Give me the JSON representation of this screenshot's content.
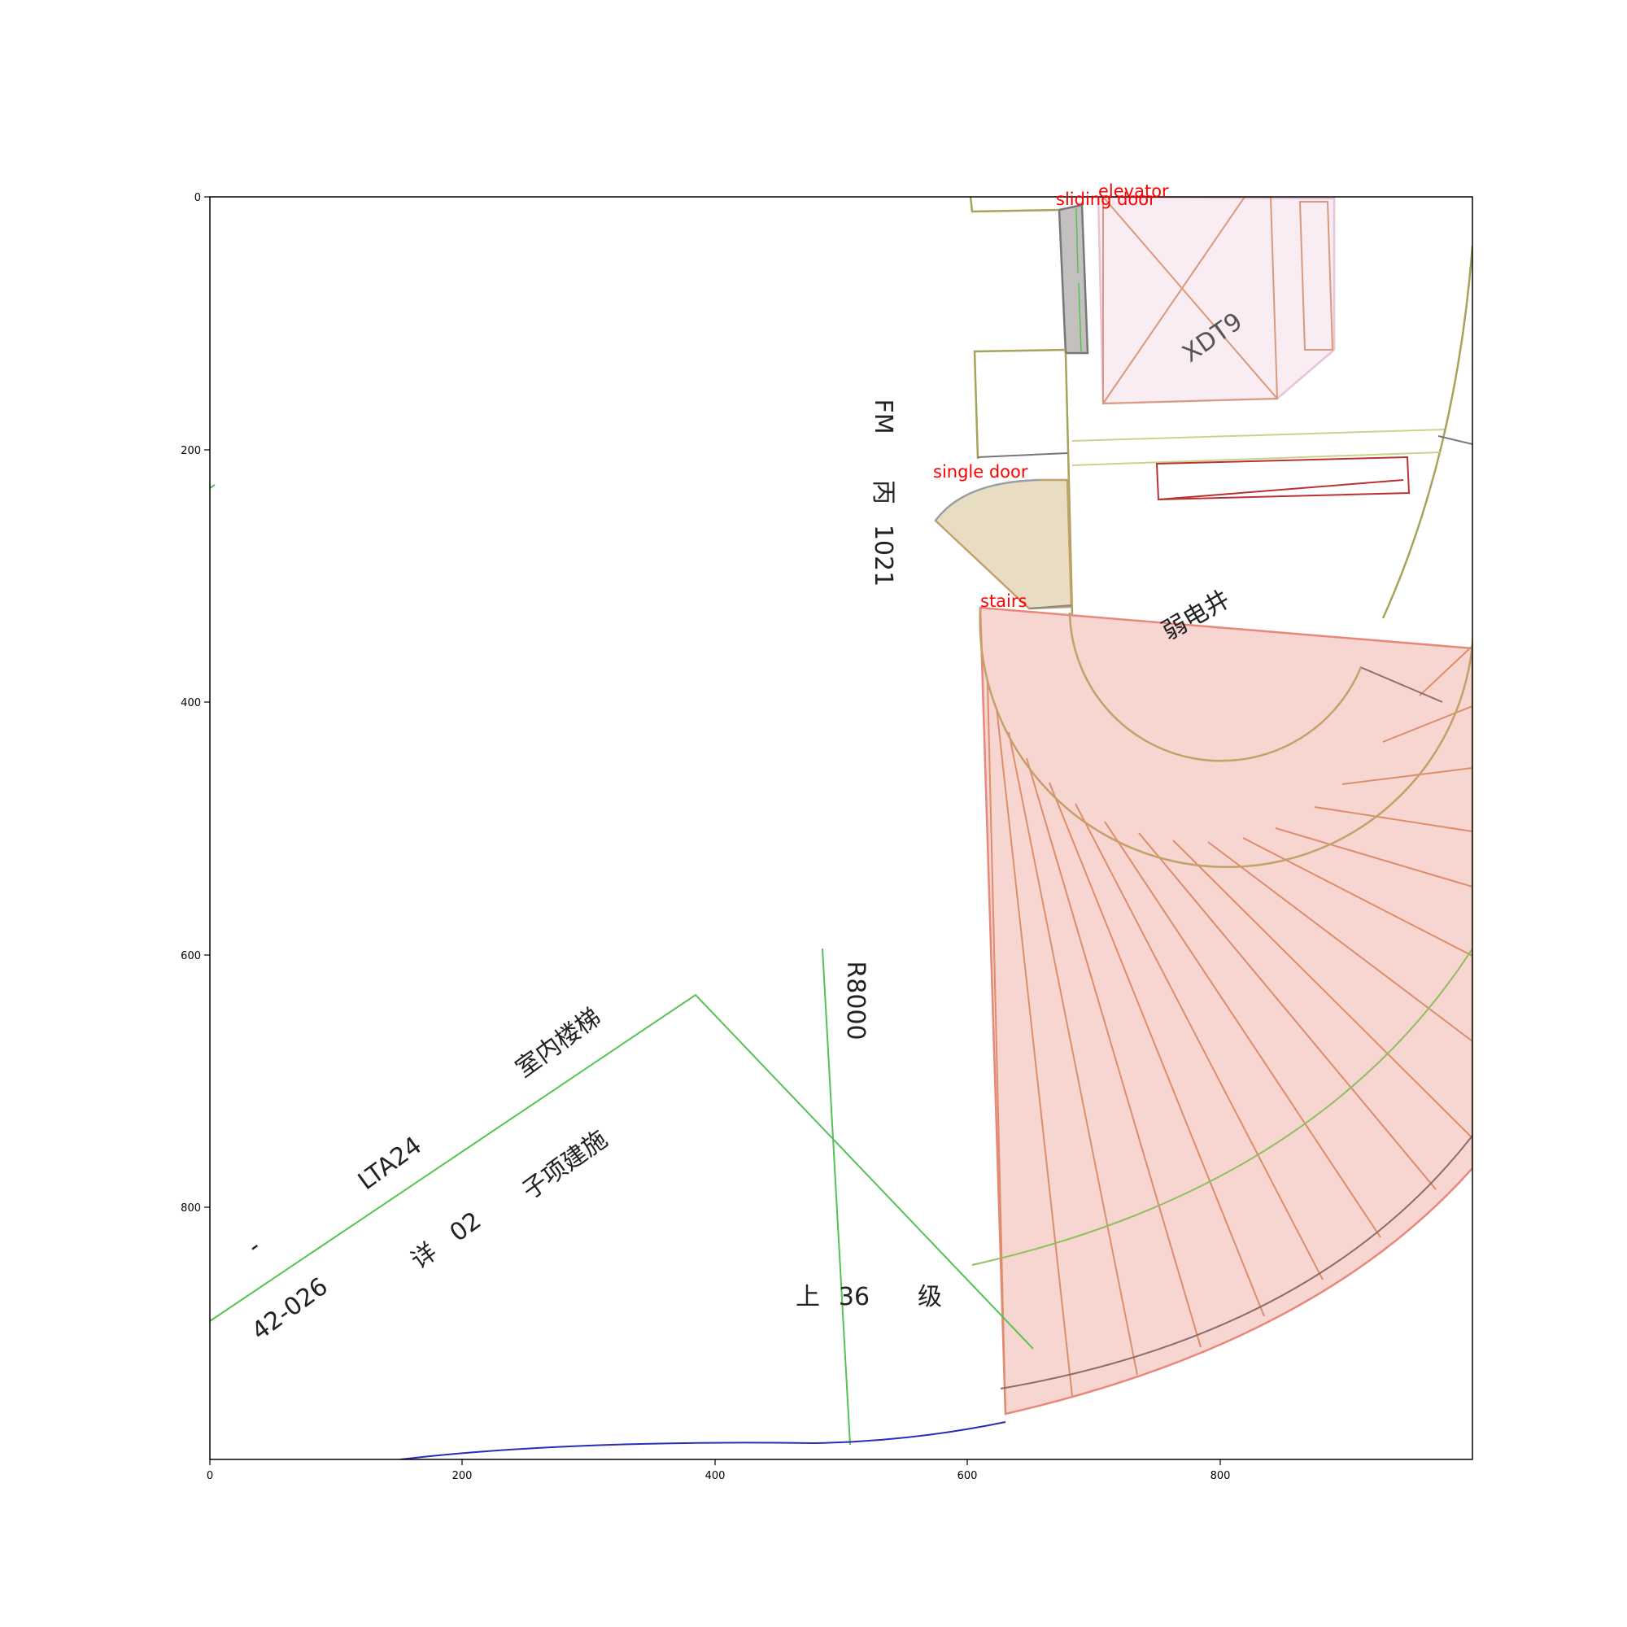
{
  "axes": {
    "x_ticks": [
      "0",
      "200",
      "400",
      "600",
      "800"
    ],
    "y_ticks": [
      "0",
      "200",
      "400",
      "600",
      "800"
    ],
    "xlim": [
      0,
      1000
    ],
    "ylim": [
      1000,
      0
    ]
  },
  "annotations": {
    "elevator": "elevator",
    "sliding_door": "sliding door",
    "single_door": "single door",
    "stairs": "stairs"
  },
  "plan_text": {
    "fm_code": [
      "FM",
      "丙",
      "1021"
    ],
    "elevator_code": "XDT9",
    "shaft": "弱电井",
    "radius": "R8000",
    "stair_name": "室内楼梯",
    "drawing_code": "LTA24",
    "dash": "-",
    "detail_code": "42-026",
    "sub_item": "子项建施",
    "detail_no": "02",
    "detail_word": "详",
    "steps_up": "上",
    "steps_count": "36",
    "steps_unit": "级"
  },
  "colors": {
    "stairs_fill": "#f7d5d1",
    "stairs_line": "#e8877a",
    "elevator_fill": "#f9ecf2",
    "elevator_line": "#d89a7a",
    "door_fill": "#e8dcc2",
    "wall_line": "#a7a35a",
    "leader_line": "#55c255",
    "boundary_line": "#2b2bb8",
    "annotation_text": "#ff0000"
  }
}
